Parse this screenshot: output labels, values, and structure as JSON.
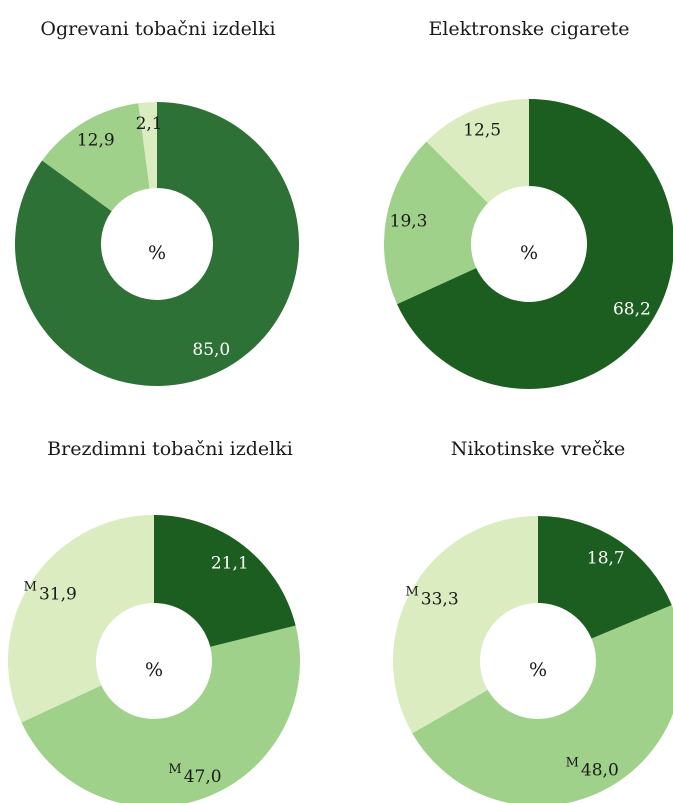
{
  "unit_label": "%",
  "chart_data": [
    {
      "type": "pie",
      "title": "Ogrevani tobačni izdelki",
      "center_label": "%",
      "series": [
        {
          "value": 85.0,
          "label": "85,0",
          "flag": "",
          "color": "#2e7137",
          "text_color": "#ffffff"
        },
        {
          "value": 12.9,
          "label": "12,9",
          "flag": "",
          "color": "#9fd18a",
          "text_color": "#1a1a1a"
        },
        {
          "value": 2.1,
          "label": "2,1",
          "flag": "",
          "color": "#dbecc0",
          "text_color": "#1a1a1a"
        }
      ]
    },
    {
      "type": "pie",
      "title": "Elektronske cigarete",
      "center_label": "%",
      "series": [
        {
          "value": 68.2,
          "label": "68,2",
          "flag": "",
          "color": "#1b5e20",
          "text_color": "#ffffff"
        },
        {
          "value": 19.3,
          "label": "19,3",
          "flag": "",
          "color": "#9fd18a",
          "text_color": "#1a1a1a"
        },
        {
          "value": 12.5,
          "label": "12,5",
          "flag": "",
          "color": "#dbecc0",
          "text_color": "#1a1a1a"
        }
      ]
    },
    {
      "type": "pie",
      "title": "Brezdimni tobačni izdelki",
      "center_label": "%",
      "series": [
        {
          "value": 21.1,
          "label": "21,1",
          "flag": "",
          "color": "#1b5e20",
          "text_color": "#ffffff"
        },
        {
          "value": 47.0,
          "label": "47,0",
          "flag": "M",
          "color": "#9fd18a",
          "text_color": "#1a1a1a"
        },
        {
          "value": 31.9,
          "label": "31,9",
          "flag": "M",
          "color": "#dbecc0",
          "text_color": "#1a1a1a"
        }
      ]
    },
    {
      "type": "pie",
      "title": "Nikotinske vrečke",
      "center_label": "%",
      "series": [
        {
          "value": 18.7,
          "label": "18,7",
          "flag": "",
          "color": "#1b5e20",
          "text_color": "#ffffff"
        },
        {
          "value": 48.0,
          "label": "48,0",
          "flag": "M",
          "color": "#9fd18a",
          "text_color": "#1a1a1a"
        },
        {
          "value": 33.3,
          "label": "33,3",
          "flag": "M",
          "color": "#dbecc0",
          "text_color": "#1a1a1a"
        }
      ]
    }
  ]
}
